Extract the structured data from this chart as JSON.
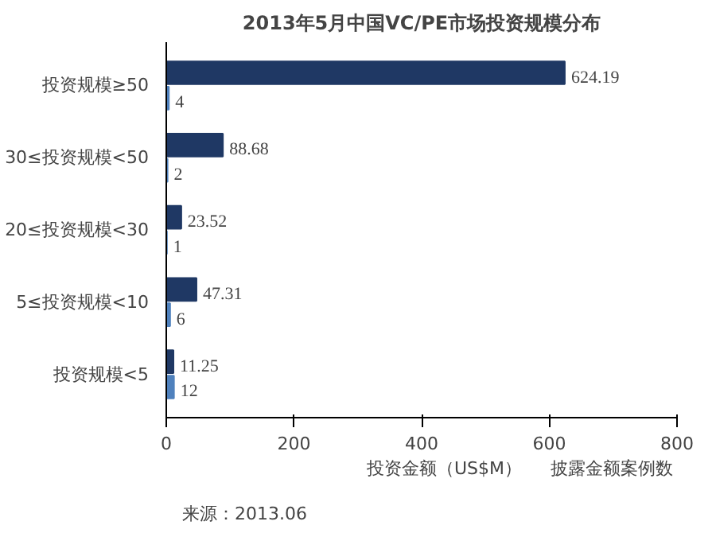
{
  "chart_data": {
    "type": "bar",
    "orientation": "horizontal",
    "title": "2013年5月中国VC/PE市场投资规模分布",
    "categories": [
      "投资规模≥50",
      "30≤投资规模<50",
      "20≤投资规模<30",
      "5≤投资规模<10",
      "投资规模<5"
    ],
    "series": [
      {
        "name": "投资金额（US$M）",
        "color": "#1f3864",
        "values": [
          624.19,
          88.68,
          23.52,
          47.31,
          11.25
        ]
      },
      {
        "name": "披露金额案例数",
        "color": "#4f81bd",
        "values": [
          4,
          2,
          1,
          6,
          12
        ]
      }
    ],
    "xlim": [
      0,
      800
    ],
    "xticks": [
      0,
      200,
      400,
      600,
      800
    ],
    "data_labels": true,
    "grid": false,
    "legend": "bottom",
    "annotations": [
      "来源：2013.06"
    ]
  }
}
